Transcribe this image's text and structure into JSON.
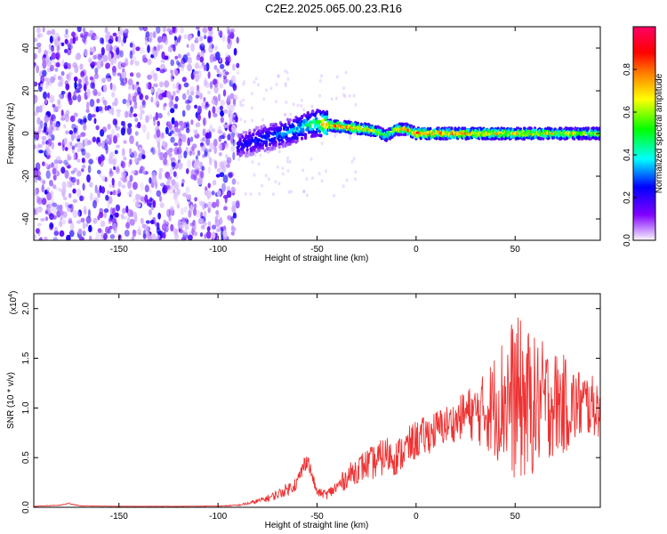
{
  "figure": {
    "title": "C2E2.2025.065.00.23.R16"
  },
  "chart_data": [
    {
      "type": "heatmap",
      "xlabel": "Height of straight line (km)",
      "ylabel": "Frequency (Hz)",
      "xlim": [
        -193,
        93
      ],
      "ylim": [
        -50,
        50
      ],
      "xticks": [
        -150,
        -100,
        -50,
        0,
        50
      ],
      "yticks": [
        -40,
        -20,
        0,
        20,
        40
      ],
      "colorbar": {
        "label": "Normalized spectral amplitude",
        "range": [
          0.0,
          1.0
        ],
        "ticks": [
          0.0,
          0.2,
          0.4,
          0.6,
          0.8
        ],
        "colormap": [
          "#ffffff",
          "#6a00ff",
          "#0000ff",
          "#00ffff",
          "#00ff00",
          "#ffff00",
          "#ff7f00",
          "#ff0000",
          "#ff0066"
        ]
      },
      "noise_region_x": [
        -193,
        -90
      ],
      "ridge": {
        "x": [
          -90,
          -80,
          -70,
          -60,
          -55,
          -50,
          -45,
          -35,
          -25,
          -20,
          -15,
          -10,
          -5,
          0,
          10,
          30,
          50,
          70,
          93
        ],
        "freq": [
          -6,
          -3,
          -1,
          2,
          4,
          5,
          4,
          3,
          2,
          1,
          -1,
          2,
          2,
          0,
          0,
          0,
          0,
          0,
          0
        ],
        "amplitude": [
          0.25,
          0.3,
          0.35,
          0.45,
          0.5,
          0.6,
          0.95,
          0.9,
          0.85,
          0.75,
          0.6,
          0.8,
          0.85,
          0.95,
          0.9,
          0.85,
          0.8,
          0.75,
          0.7
        ]
      }
    },
    {
      "type": "line",
      "xlabel": "Height of straight line (km)",
      "ylabel": "SNR (10 * v/v)",
      "y_multiplier": "(x10",
      "y_multiplier_exp": "4",
      "y_multiplier_close": ")",
      "xlim": [
        -193,
        93
      ],
      "ylim": [
        0,
        21500
      ],
      "xticks": [
        -150,
        -100,
        -50,
        0,
        50
      ],
      "yticks": [
        0,
        5000,
        10000,
        15000,
        20000
      ],
      "ytick_labels": [
        "0.0",
        "0.5",
        "1.0",
        "1.5",
        "2.0"
      ],
      "color": "#ee3333",
      "series": [
        {
          "x": [
            -193,
            -180,
            -175,
            -170,
            -150,
            -120,
            -100,
            -90,
            -82,
            -75,
            -70,
            -65,
            -60,
            -57,
            -55,
            -53,
            -50,
            -45,
            -40,
            -35,
            -30,
            -25,
            -20,
            -15,
            -10,
            -5,
            0,
            5,
            10,
            15,
            20,
            25,
            30,
            35,
            40,
            45,
            50,
            55,
            60,
            65,
            70,
            75,
            80,
            85,
            90,
            93
          ],
          "y": [
            100,
            200,
            400,
            150,
            100,
            100,
            120,
            200,
            500,
            900,
            1300,
            1800,
            2500,
            4000,
            5000,
            3500,
            1500,
            1300,
            2000,
            3000,
            3800,
            4300,
            4600,
            5300,
            5000,
            5900,
            6800,
            7200,
            7800,
            8300,
            8600,
            9500,
            9400,
            9700,
            10300,
            11000,
            11000,
            10500,
            10200,
            10700,
            10500,
            10300,
            10200,
            10400,
            10100,
            10000
          ],
          "noise_amplitude": [
            20,
            40,
            80,
            30,
            20,
            20,
            30,
            80,
            200,
            350,
            500,
            600,
            800,
            900,
            1000,
            700,
            400,
            500,
            800,
            1100,
            1400,
            1600,
            1800,
            2000,
            1800,
            2000,
            2000,
            2000,
            2000,
            2000,
            2000,
            2500,
            3000,
            4000,
            5500,
            7000,
            8500,
            8000,
            7000,
            6000,
            5500,
            5000,
            4000,
            3500,
            3000,
            3000
          ]
        }
      ]
    }
  ]
}
